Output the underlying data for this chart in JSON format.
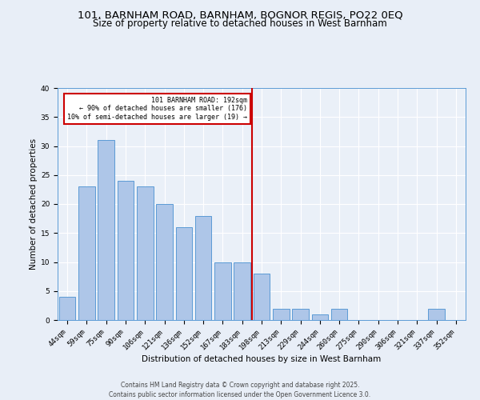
{
  "title1": "101, BARNHAM ROAD, BARNHAM, BOGNOR REGIS, PO22 0EQ",
  "title2": "Size of property relative to detached houses in West Barnham",
  "xlabel": "Distribution of detached houses by size in West Barnham",
  "ylabel": "Number of detached properties",
  "categories": [
    "44sqm",
    "59sqm",
    "75sqm",
    "90sqm",
    "106sqm",
    "121sqm",
    "136sqm",
    "152sqm",
    "167sqm",
    "183sqm",
    "198sqm",
    "213sqm",
    "229sqm",
    "244sqm",
    "260sqm",
    "275sqm",
    "290sqm",
    "306sqm",
    "321sqm",
    "337sqm",
    "352sqm"
  ],
  "values": [
    4,
    23,
    31,
    24,
    23,
    20,
    16,
    18,
    10,
    10,
    8,
    2,
    2,
    1,
    2,
    0,
    0,
    0,
    0,
    2,
    0
  ],
  "bar_color": "#aec6e8",
  "bar_edge_color": "#5b9bd5",
  "vline_x": 9.5,
  "annotation_line1": "101 BARNHAM ROAD: 192sqm",
  "annotation_line2": "← 90% of detached houses are smaller (176)",
  "annotation_line3": "10% of semi-detached houses are larger (19) →",
  "annotation_box_color": "#ffffff",
  "annotation_box_edge": "#cc0000",
  "vline_color": "#cc0000",
  "ylim": [
    0,
    40
  ],
  "yticks": [
    0,
    5,
    10,
    15,
    20,
    25,
    30,
    35,
    40
  ],
  "footer": "Contains HM Land Registry data © Crown copyright and database right 2025.\nContains public sector information licensed under the Open Government Licence 3.0.",
  "bg_color": "#e8eef7",
  "plot_bg_color": "#eaf0f8",
  "grid_color": "#ffffff",
  "title1_fontsize": 9.5,
  "title2_fontsize": 8.5,
  "axis_label_fontsize": 7.5,
  "tick_fontsize": 6.5,
  "footer_fontsize": 5.5
}
